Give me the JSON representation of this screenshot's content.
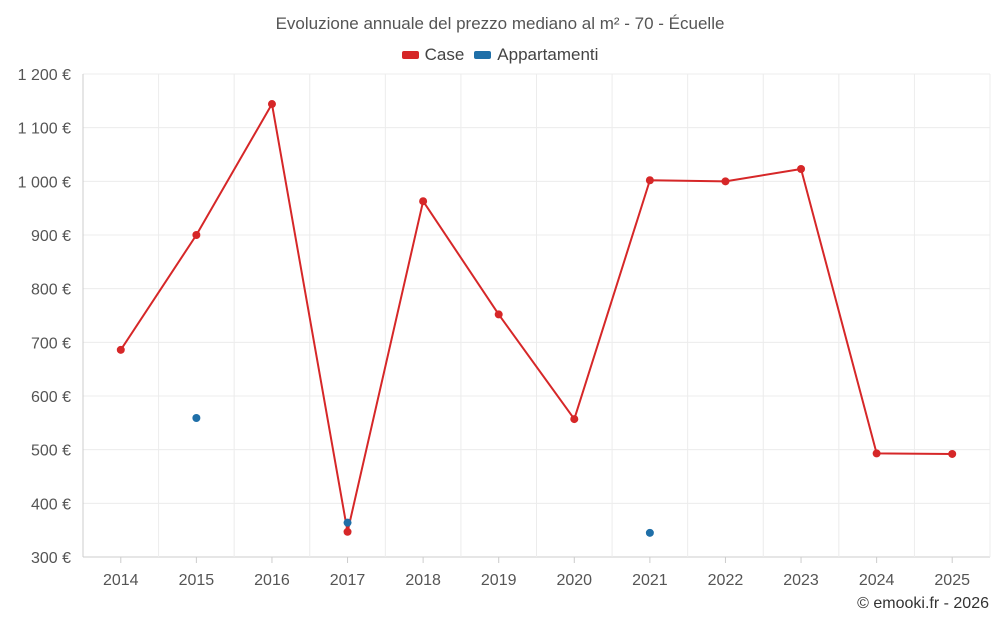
{
  "chart_data": {
    "type": "line",
    "title": "Evoluzione annuale del prezzo mediano al m² - 70 - Écuelle",
    "categories": [
      "2014",
      "2015",
      "2016",
      "2017",
      "2018",
      "2019",
      "2020",
      "2021",
      "2022",
      "2023",
      "2024",
      "2025"
    ],
    "ylim": [
      300,
      1200
    ],
    "yticks": [
      300,
      400,
      500,
      600,
      700,
      800,
      900,
      1000,
      1100,
      1200
    ],
    "ytick_labels": [
      "300 €",
      "400 €",
      "500 €",
      "600 €",
      "700 €",
      "800 €",
      "900 €",
      "1 000 €",
      "1 100 €",
      "1 200 €"
    ],
    "grid": true,
    "legend_position": "top-center",
    "series": [
      {
        "name": "Case",
        "color": "#d62728",
        "line": true,
        "values": [
          686,
          900,
          1144,
          347,
          963,
          752,
          557,
          1002,
          1000,
          1023,
          493,
          492
        ]
      },
      {
        "name": "Appartamenti",
        "color": "#1f6fa8",
        "line": false,
        "values": [
          null,
          559,
          null,
          364,
          null,
          null,
          null,
          345,
          null,
          null,
          null,
          null
        ]
      }
    ]
  },
  "credit": "© emooki.fr - 2026"
}
